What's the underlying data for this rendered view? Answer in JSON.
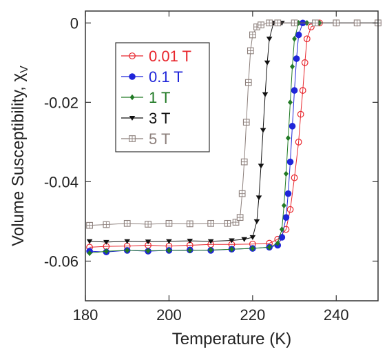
{
  "chart_data": {
    "type": "scatter",
    "xlabel": "Temperature (K)",
    "ylabel": "Volume Susceptibility, ",
    "ylabel_symbol": "χ",
    "ylabel_subscript": "V",
    "xlim": [
      180,
      250
    ],
    "ylim": [
      -0.07,
      0.003
    ],
    "xticks": [
      180,
      200,
      220,
      240
    ],
    "xtick_labels": [
      "180",
      "200",
      "220",
      "240"
    ],
    "yticks": [
      0,
      -0.02,
      -0.04,
      -0.06
    ],
    "ytick_labels": [
      "0",
      "-0.02",
      "-0.04",
      "-0.06"
    ],
    "grid": false,
    "legend_position": "top-left",
    "series": [
      {
        "name": "0.01 T",
        "color": "#e8262d",
        "marker": "circle-open",
        "x": [
          181,
          185,
          190,
          195,
          200,
          205,
          210,
          215,
          220,
          224,
          226,
          228,
          229,
          230,
          231,
          231.5,
          232,
          232.5,
          233,
          234,
          236,
          240,
          245,
          250
        ],
        "y": [
          -0.0565,
          -0.0563,
          -0.0562,
          -0.056,
          -0.0562,
          -0.056,
          -0.0558,
          -0.0558,
          -0.0557,
          -0.0555,
          -0.0545,
          -0.052,
          -0.047,
          -0.039,
          -0.03,
          -0.023,
          -0.017,
          -0.01,
          -0.004,
          -0.001,
          0,
          0,
          0,
          0
        ]
      },
      {
        "name": "0.1 T",
        "color": "#1f25d9",
        "marker": "circle-filled",
        "x": [
          181,
          185,
          190,
          195,
          200,
          205,
          210,
          215,
          220,
          224,
          226,
          227,
          228,
          228.5,
          229,
          229.5,
          230,
          230.5,
          231,
          232,
          235,
          240,
          245,
          250
        ],
        "y": [
          -0.0575,
          -0.0577,
          -0.0573,
          -0.0575,
          -0.0573,
          -0.0572,
          -0.0573,
          -0.057,
          -0.0568,
          -0.0565,
          -0.056,
          -0.054,
          -0.049,
          -0.043,
          -0.035,
          -0.026,
          -0.017,
          -0.009,
          -0.003,
          0,
          0,
          0,
          0,
          0
        ]
      },
      {
        "name": "1 T",
        "color": "#217a25",
        "marker": "diamond-filled",
        "x": [
          181,
          185,
          190,
          195,
          200,
          205,
          210,
          215,
          220,
          224,
          226,
          227,
          227.5,
          228,
          228.5,
          229,
          229.5,
          230,
          231,
          233,
          236,
          240,
          245,
          250
        ],
        "y": [
          -0.058,
          -0.0575,
          -0.0573,
          -0.0574,
          -0.0573,
          -0.0573,
          -0.0572,
          -0.057,
          -0.0568,
          -0.0565,
          -0.0555,
          -0.052,
          -0.046,
          -0.038,
          -0.029,
          -0.02,
          -0.011,
          -0.004,
          0,
          0,
          0,
          0,
          0,
          0
        ]
      },
      {
        "name": "3 T",
        "color": "#111111",
        "marker": "triangle-down-filled",
        "x": [
          181,
          185,
          190,
          195,
          200,
          205,
          210,
          215,
          218,
          220,
          221,
          221.5,
          222,
          222.5,
          223,
          223.5,
          224,
          225,
          227,
          230,
          235,
          240,
          245,
          250
        ],
        "y": [
          -0.055,
          -0.0552,
          -0.055,
          -0.0551,
          -0.055,
          -0.0549,
          -0.055,
          -0.0548,
          -0.0545,
          -0.054,
          -0.05,
          -0.044,
          -0.036,
          -0.027,
          -0.018,
          -0.01,
          -0.004,
          0,
          0,
          0,
          0,
          0,
          0,
          0
        ]
      },
      {
        "name": "5 T",
        "color": "#8c7f7b",
        "marker": "square-open-cross",
        "x": [
          181,
          185,
          190,
          195,
          200,
          205,
          210,
          214,
          216,
          217,
          217.5,
          218,
          218.5,
          219,
          219.5,
          220,
          221,
          222,
          224,
          226,
          230,
          235,
          240,
          245,
          250
        ],
        "y": [
          -0.051,
          -0.0508,
          -0.0505,
          -0.0507,
          -0.0505,
          -0.0506,
          -0.0505,
          -0.0505,
          -0.0502,
          -0.049,
          -0.043,
          -0.035,
          -0.025,
          -0.015,
          -0.007,
          -0.003,
          -0.001,
          -0.0005,
          0,
          0,
          0,
          0,
          0,
          0,
          0
        ]
      }
    ]
  }
}
